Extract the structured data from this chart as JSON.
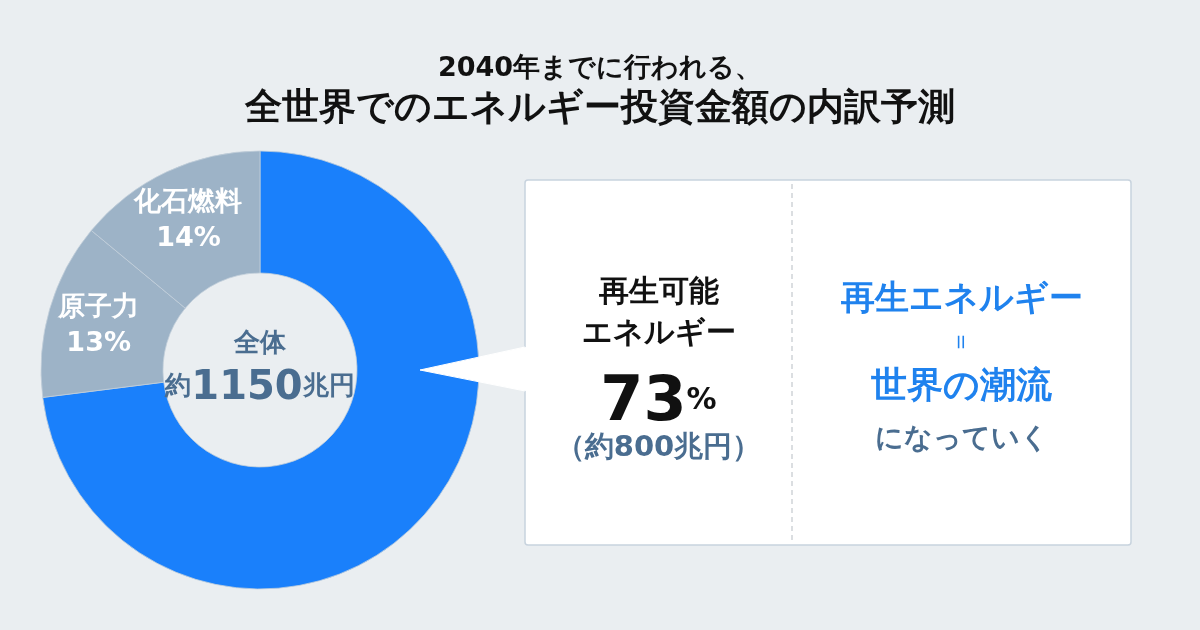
{
  "chart_data": {
    "type": "donut",
    "title": "2040年までに行われる、全世界でのエネルギー投資金額の内訳予測",
    "categories": [
      "再生可能エネルギー",
      "原子力",
      "化石燃料"
    ],
    "values": [
      73,
      13,
      14
    ],
    "colors": [
      "#1a80fb",
      "#9db3c7",
      "#9db3c7"
    ],
    "value_labels": [
      "73%",
      "13%",
      "14%"
    ],
    "annotations": [
      "全体",
      "約1150兆円",
      "（約800兆円）",
      "再生エネルギー",
      "＝",
      "世界の潮流",
      "になっていく"
    ]
  }
}
